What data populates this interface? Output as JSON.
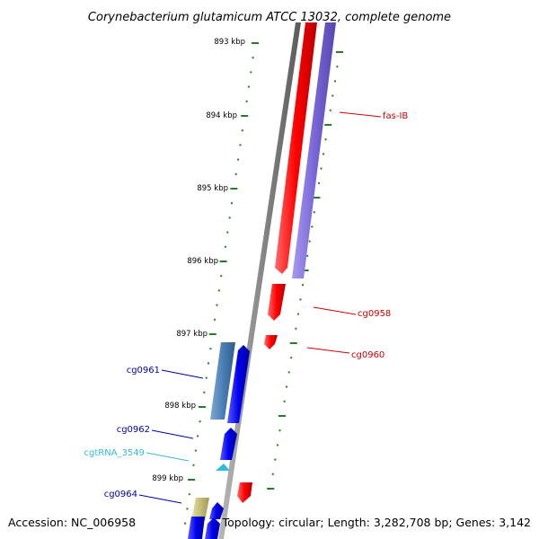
{
  "title": "Corynebacterium glutamicum ATCC 13032, complete genome",
  "footer": {
    "accession": "Accession: NC_006958",
    "summary": "Topology: circular; Length: 3,282,708 bp; Genes: 3,142"
  },
  "colors": {
    "backbone": "#8a8a8a",
    "tick": "#2a7a2a",
    "forward_gene": "#ff0000",
    "reverse_gene": "#0000ee",
    "reverse_gene_pale": "#4a7fb5",
    "fas_gene": "#7b68d8",
    "trna": "#33bbdd",
    "olive_gene": "#c8c070",
    "label_red": "#cc0000",
    "label_blue": "#0000aa",
    "label_cyan": "#33bbdd"
  },
  "kbp_labels": [
    "893 kbp",
    "894 kbp",
    "895 kbp",
    "896 kbp",
    "897 kbp",
    "898 kbp",
    "899 kbp"
  ],
  "gene_labels": [
    {
      "id": "fas-IB",
      "text": "fas-IB"
    },
    {
      "id": "cg0958",
      "text": "cg0958"
    },
    {
      "id": "cg0960",
      "text": "cg0960"
    },
    {
      "id": "cg0961",
      "text": "cg0961"
    },
    {
      "id": "cg0962",
      "text": "cg0962"
    },
    {
      "id": "cgtRNA_3549",
      "text": "cgtRNA_3549"
    },
    {
      "id": "cg0964",
      "text": "cg0964"
    }
  ]
}
